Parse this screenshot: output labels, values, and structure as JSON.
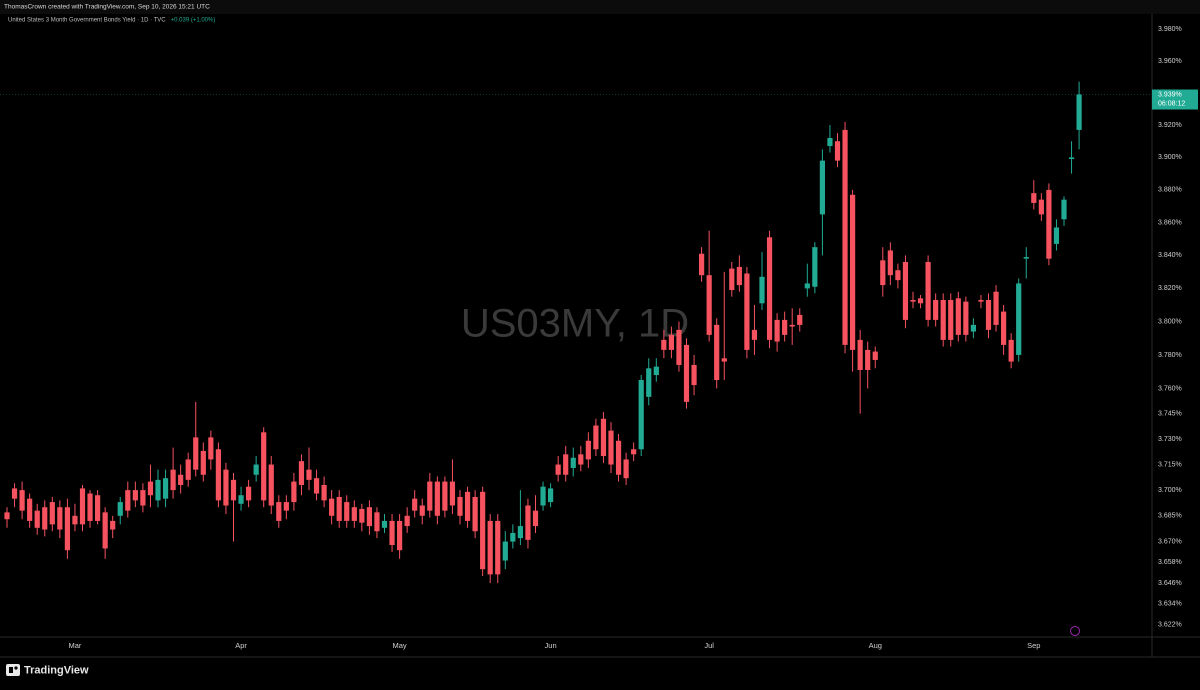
{
  "header": "ThomasCrown created with TradingView.com, Sep 10, 2026 15:21 UTC",
  "footer_logo": "TradingView",
  "chart_data": {
    "type": "candlestick",
    "title": "United States 3 Month Government Bonds Yield · 1D · TVC",
    "change_label": "+0.039 (+1.00%)",
    "watermark": "US03MY, 1D",
    "last_price": {
      "value": 3.939,
      "label": "3.939%"
    },
    "countdown": "06:08:12",
    "up_color": "#22ab94",
    "down_color": "#f7525f",
    "log_scale": true,
    "grid": false,
    "ylim": [
      3.615,
      3.9895
    ],
    "yticks": [
      {
        "value": 3.622,
        "label": "3.622%"
      },
      {
        "value": 3.634,
        "label": "3.634%"
      },
      {
        "value": 3.646,
        "label": "3.646%"
      },
      {
        "value": 3.658,
        "label": "3.658%"
      },
      {
        "value": 3.67,
        "label": "3.670%"
      },
      {
        "value": 3.685,
        "label": "3.685%"
      },
      {
        "value": 3.7,
        "label": "3.700%"
      },
      {
        "value": 3.715,
        "label": "3.715%"
      },
      {
        "value": 3.73,
        "label": "3.730%"
      },
      {
        "value": 3.745,
        "label": "3.745%"
      },
      {
        "value": 3.76,
        "label": "3.760%"
      },
      {
        "value": 3.78,
        "label": "3.780%"
      },
      {
        "value": 3.8,
        "label": "3.800%"
      },
      {
        "value": 3.82,
        "label": "3.820%"
      },
      {
        "value": 3.84,
        "label": "3.840%"
      },
      {
        "value": 3.86,
        "label": "3.860%"
      },
      {
        "value": 3.88,
        "label": "3.880%"
      },
      {
        "value": 3.9,
        "label": "3.900%"
      },
      {
        "value": 3.92,
        "label": "3.920%"
      },
      {
        "value": 3.96,
        "label": "3.960%"
      },
      {
        "value": 3.98,
        "label": "3.980%"
      }
    ],
    "categories": [
      null,
      null,
      null,
      null,
      null,
      null,
      null,
      null,
      null,
      "Mar",
      null,
      null,
      null,
      null,
      null,
      null,
      null,
      null,
      null,
      null,
      null,
      null,
      null,
      null,
      null,
      null,
      null,
      null,
      null,
      null,
      null,
      "Apr",
      null,
      null,
      null,
      null,
      null,
      null,
      null,
      null,
      null,
      null,
      null,
      null,
      null,
      null,
      null,
      null,
      null,
      null,
      null,
      null,
      "May",
      null,
      null,
      null,
      null,
      null,
      null,
      null,
      null,
      null,
      null,
      null,
      null,
      null,
      null,
      null,
      null,
      null,
      null,
      null,
      "Jun",
      null,
      null,
      null,
      null,
      null,
      null,
      null,
      null,
      null,
      null,
      null,
      null,
      null,
      null,
      null,
      null,
      null,
      null,
      null,
      null,
      "Jul",
      null,
      null,
      null,
      null,
      null,
      null,
      null,
      null,
      null,
      null,
      null,
      null,
      null,
      null,
      null,
      null,
      null,
      null,
      null,
      null,
      null,
      "Aug",
      null,
      null,
      null,
      null,
      null,
      null,
      null,
      null,
      null,
      null,
      null,
      null,
      null,
      null,
      null,
      null,
      null,
      null,
      null,
      null,
      "Sep",
      null,
      null,
      null,
      null,
      null,
      null
    ],
    "open": [
      3.687,
      3.701,
      3.7,
      3.695,
      3.688,
      3.69,
      3.693,
      3.69,
      3.69,
      3.685,
      3.701,
      3.698,
      3.697,
      3.687,
      3.682,
      3.685,
      3.7,
      3.7,
      3.7,
      3.705,
      3.694,
      3.695,
      3.712,
      3.709,
      3.718,
      3.731,
      3.723,
      3.731,
      3.724,
      3.712,
      3.706,
      3.692,
      3.702,
      3.709,
      3.734,
      3.715,
      3.693,
      3.693,
      3.705,
      3.717,
      3.712,
      3.707,
      3.703,
      3.695,
      3.696,
      3.693,
      3.69,
      3.689,
      3.69,
      3.687,
      3.678,
      3.682,
      3.682,
      3.685,
      3.695,
      3.691,
      3.705,
      3.705,
      3.705,
      3.705,
      3.696,
      3.699,
      3.696,
      3.699,
      3.682,
      3.682,
      3.659,
      3.67,
      3.672,
      3.691,
      3.688,
      3.691,
      3.693,
      3.715,
      3.721,
      3.713,
      3.721,
      3.729,
      3.738,
      3.742,
      3.735,
      3.729,
      3.718,
      3.724,
      3.724,
      3.755,
      3.768,
      3.789,
      3.792,
      3.795,
      3.786,
      3.774,
      3.841,
      3.828,
      3.798,
      3.778,
      3.832,
      3.833,
      3.829,
      3.795,
      3.811,
      3.851,
      3.801,
      3.801,
      3.798,
      3.804,
      3.82,
      3.821,
      3.865,
      3.907,
      3.91,
      3.917,
      3.877,
      3.789,
      3.783,
      3.782,
      3.837,
      3.843,
      3.831,
      3.836,
      3.813,
      3.814,
      3.836,
      3.813,
      3.813,
      3.813,
      3.814,
      3.812,
      3.794,
      3.813,
      3.813,
      3.818,
      3.806,
      3.789,
      3.78,
      3.838,
      3.878,
      3.874,
      3.88,
      3.847,
      3.862,
      3.899,
      3.917
    ],
    "high": [
      3.69,
      3.704,
      3.705,
      3.698,
      3.692,
      3.694,
      3.696,
      3.694,
      3.695,
      3.692,
      3.703,
      3.7,
      3.7,
      3.69,
      3.685,
      3.696,
      3.705,
      3.705,
      3.704,
      3.715,
      3.712,
      3.712,
      3.725,
      3.715,
      3.722,
      3.752,
      3.728,
      3.735,
      3.728,
      3.716,
      3.71,
      3.702,
      3.706,
      3.72,
      3.737,
      3.72,
      3.697,
      3.697,
      3.71,
      3.721,
      3.725,
      3.712,
      3.708,
      3.7,
      3.7,
      3.697,
      3.694,
      3.692,
      3.694,
      3.69,
      3.686,
      3.686,
      3.686,
      3.69,
      3.7,
      3.695,
      3.71,
      3.708,
      3.708,
      3.718,
      3.7,
      3.702,
      3.7,
      3.702,
      3.686,
      3.686,
      3.676,
      3.68,
      3.7,
      3.695,
      3.697,
      3.705,
      3.704,
      3.72,
      3.726,
      3.725,
      3.726,
      3.734,
      3.742,
      3.746,
      3.74,
      3.733,
      3.722,
      3.728,
      3.768,
      3.778,
      3.778,
      3.795,
      3.797,
      3.8,
      3.79,
      3.78,
      3.845,
      3.855,
      3.802,
      3.83,
      3.836,
      3.84,
      3.833,
      3.81,
      3.842,
      3.855,
      3.805,
      3.806,
      3.808,
      3.808,
      3.835,
      3.848,
      3.905,
      3.92,
      3.915,
      3.922,
      3.88,
      3.795,
      3.788,
      3.785,
      3.845,
      3.848,
      3.835,
      3.84,
      3.818,
      3.816,
      3.84,
      3.817,
      3.817,
      3.817,
      3.818,
      3.815,
      3.802,
      3.816,
      3.817,
      3.822,
      3.81,
      3.793,
      3.826,
      3.845,
      3.886,
      3.878,
      3.884,
      3.862,
      3.876,
      3.91,
      3.947
    ],
    "low": [
      3.678,
      3.69,
      3.683,
      3.678,
      3.674,
      3.673,
      3.676,
      3.672,
      3.66,
      3.676,
      3.676,
      3.678,
      3.68,
      3.66,
      3.672,
      3.68,
      3.684,
      3.69,
      3.687,
      3.69,
      3.69,
      3.69,
      3.695,
      3.698,
      3.702,
      3.708,
      3.705,
      3.712,
      3.69,
      3.686,
      3.67,
      3.688,
      3.69,
      3.705,
      3.69,
      3.686,
      3.678,
      3.683,
      3.688,
      3.697,
      3.7,
      3.694,
      3.69,
      3.68,
      3.678,
      3.678,
      3.678,
      3.676,
      3.674,
      3.672,
      3.675,
      3.664,
      3.66,
      3.675,
      3.684,
      3.68,
      3.684,
      3.68,
      3.684,
      3.686,
      3.68,
      3.678,
      3.672,
      3.65,
      3.646,
      3.646,
      3.654,
      3.666,
      3.668,
      3.666,
      3.675,
      3.688,
      3.69,
      3.705,
      3.705,
      3.708,
      3.711,
      3.713,
      3.72,
      3.716,
      3.71,
      3.705,
      3.703,
      3.717,
      3.72,
      3.75,
      3.764,
      3.778,
      3.778,
      3.77,
      3.748,
      3.756,
      3.824,
      3.788,
      3.76,
      3.765,
      3.815,
      3.818,
      3.778,
      3.78,
      3.807,
      3.784,
      3.782,
      3.788,
      3.786,
      3.794,
      3.815,
      3.817,
      3.84,
      3.903,
      3.894,
      3.781,
      3.77,
      3.745,
      3.76,
      3.772,
      3.815,
      3.822,
      3.82,
      3.796,
      3.808,
      3.808,
      3.797,
      3.797,
      3.785,
      3.785,
      3.788,
      3.788,
      3.79,
      3.808,
      3.79,
      3.794,
      3.78,
      3.772,
      3.776,
      3.826,
      3.868,
      3.861,
      3.834,
      3.843,
      3.858,
      3.89,
      3.905
    ],
    "close": [
      3.683,
      3.695,
      3.688,
      3.682,
      3.678,
      3.677,
      3.68,
      3.677,
      3.665,
      3.68,
      3.68,
      3.682,
      3.682,
      3.666,
      3.677,
      3.693,
      3.688,
      3.694,
      3.691,
      3.697,
      3.706,
      3.707,
      3.7,
      3.703,
      3.706,
      3.712,
      3.709,
      3.718,
      3.694,
      3.691,
      3.694,
      3.697,
      3.694,
      3.715,
      3.694,
      3.691,
      3.682,
      3.688,
      3.693,
      3.703,
      3.706,
      3.698,
      3.694,
      3.685,
      3.682,
      3.682,
      3.682,
      3.681,
      3.679,
      3.676,
      3.682,
      3.668,
      3.665,
      3.679,
      3.688,
      3.685,
      3.688,
      3.685,
      3.688,
      3.691,
      3.685,
      3.682,
      3.676,
      3.654,
      3.651,
      3.651,
      3.67,
      3.675,
      3.679,
      3.671,
      3.679,
      3.702,
      3.701,
      3.709,
      3.709,
      3.719,
      3.715,
      3.718,
      3.724,
      3.72,
      3.715,
      3.709,
      3.707,
      3.721,
      3.765,
      3.772,
      3.773,
      3.783,
      3.783,
      3.774,
      3.752,
      3.762,
      3.828,
      3.792,
      3.765,
      3.776,
      3.819,
      3.822,
      3.783,
      3.789,
      3.827,
      3.789,
      3.788,
      3.792,
      3.797,
      3.798,
      3.823,
      3.845,
      3.898,
      3.912,
      3.898,
      3.786,
      3.783,
      3.771,
      3.771,
      3.777,
      3.822,
      3.828,
      3.825,
      3.801,
      3.812,
      3.811,
      3.801,
      3.801,
      3.789,
      3.789,
      3.792,
      3.792,
      3.798,
      3.812,
      3.795,
      3.798,
      3.786,
      3.776,
      3.823,
      3.839,
      3.872,
      3.865,
      3.838,
      3.857,
      3.874,
      3.9,
      3.939
    ]
  }
}
